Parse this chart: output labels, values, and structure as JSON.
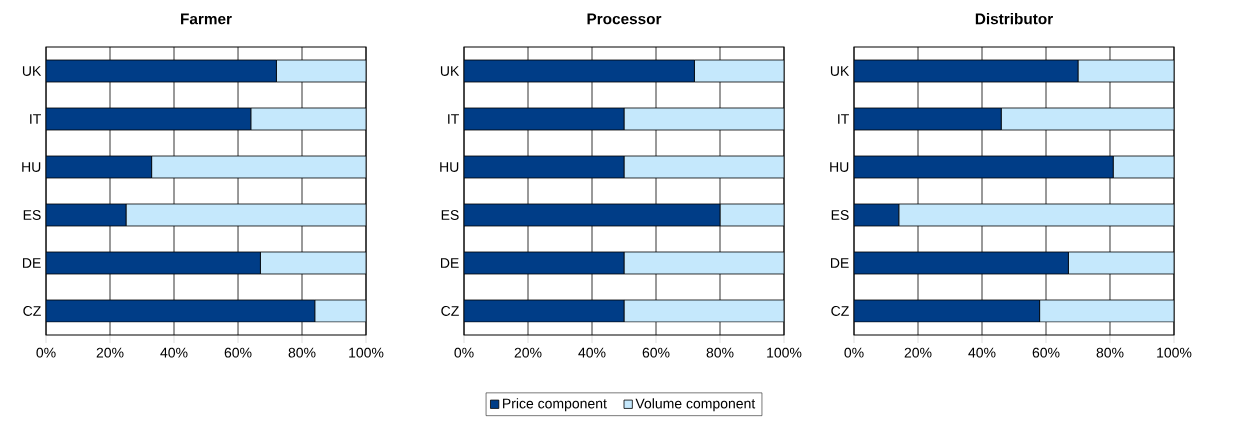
{
  "chart_data": [
    {
      "type": "bar",
      "orientation": "horizontal",
      "stacked": true,
      "title": "Farmer",
      "categories": [
        "UK",
        "IT",
        "HU",
        "ES",
        "DE",
        "CZ"
      ],
      "xlim": [
        0,
        100
      ],
      "xticks": [
        {
          "value": 0,
          "label": "0%"
        },
        {
          "value": 20,
          "label": "20%"
        },
        {
          "value": 40,
          "label": "40%"
        },
        {
          "value": 60,
          "label": "60%"
        },
        {
          "value": 80,
          "label": "80%"
        },
        {
          "value": 100,
          "label": "100%"
        }
      ],
      "grid": "x",
      "series": [
        {
          "color": "#003d87",
          "values": [
            72,
            64,
            33,
            25,
            67,
            84
          ]
        },
        {
          "color": "#c5e8fc",
          "values": [
            28,
            36,
            67,
            75,
            33,
            16
          ]
        }
      ]
    },
    {
      "type": "bar",
      "orientation": "horizontal",
      "stacked": true,
      "title": "Processor",
      "categories": [
        "UK",
        "IT",
        "HU",
        "ES",
        "DE",
        "CZ"
      ],
      "xlim": [
        0,
        100
      ],
      "xticks": [
        {
          "value": 0,
          "label": "0%"
        },
        {
          "value": 20,
          "label": "20%"
        },
        {
          "value": 40,
          "label": "40%"
        },
        {
          "value": 60,
          "label": "60%"
        },
        {
          "value": 80,
          "label": "80%"
        },
        {
          "value": 100,
          "label": "100%"
        }
      ],
      "grid": "x",
      "legend": "bottom",
      "series": [
        {
          "name": "Price component",
          "color": "#003d87",
          "values": [
            72,
            50,
            50,
            80,
            50,
            50
          ]
        },
        {
          "name": "Volume component",
          "color": "#c5e8fc",
          "values": [
            28,
            50,
            50,
            20,
            50,
            50
          ]
        }
      ]
    },
    {
      "type": "bar",
      "orientation": "horizontal",
      "stacked": true,
      "title": "Distributor",
      "categories": [
        "UK",
        "IT",
        "HU",
        "ES",
        "DE",
        "CZ"
      ],
      "xlim": [
        0,
        100
      ],
      "xticks": [
        {
          "value": 0,
          "label": "0%"
        },
        {
          "value": 20,
          "label": "20%"
        },
        {
          "value": 40,
          "label": "40%"
        },
        {
          "value": 60,
          "label": "60%"
        },
        {
          "value": 80,
          "label": "80%"
        },
        {
          "value": 100,
          "label": "100%"
        }
      ],
      "grid": "x",
      "series": [
        {
          "color": "#003d87",
          "values": [
            70,
            46,
            81,
            14,
            67,
            58
          ]
        },
        {
          "color": "#c5e8fc",
          "values": [
            30,
            54,
            19,
            86,
            33,
            42
          ]
        }
      ]
    }
  ]
}
